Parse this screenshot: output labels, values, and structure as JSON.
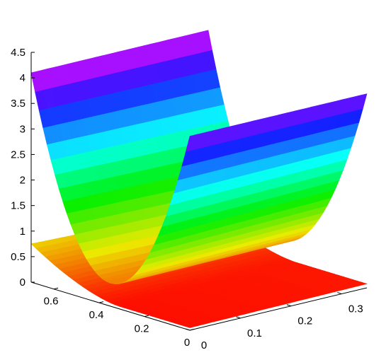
{
  "chart_data": {
    "type": "surface",
    "title": "",
    "xlabel": "",
    "ylabel": "",
    "zlabel": "",
    "grid": false,
    "colormap": "hsv",
    "colors": {
      "red": "#ff0000",
      "orange": "#ff9900",
      "yellow": "#ffe000",
      "green": "#44ff00",
      "cyan": "#00ffff",
      "blue": "#1f5fff",
      "magenta": "#ff00ff"
    },
    "x_axis": {
      "lim": [
        0,
        0.35
      ],
      "ticks": [
        0,
        0.1,
        0.2,
        0.3
      ],
      "tick_labels": [
        "0",
        "0.1",
        "0.2",
        "0.3"
      ]
    },
    "y_axis": {
      "lim": [
        0,
        0.7
      ],
      "ticks": [
        0,
        0.2,
        0.4,
        0.6
      ],
      "tick_labels": [
        "0",
        "0.2",
        "0.4",
        "0.6"
      ]
    },
    "z_axis": {
      "lim": [
        0,
        4.5
      ],
      "ticks": [
        0,
        0.5,
        1,
        1.5,
        2,
        2.5,
        3,
        3.5,
        4,
        4.5
      ],
      "tick_labels": [
        "0",
        "0.5",
        "1",
        "1.5",
        "2",
        "2.5",
        "3",
        "3.5",
        "4",
        "4.5"
      ]
    },
    "surfaces": [
      {
        "name": "",
        "shape": "valley",
        "x_range": [
          0,
          0.35
        ],
        "y_range": [
          0,
          0.7
        ],
        "min_z": 0.45,
        "min_at_y": 0.35,
        "edge_z_at_y0": 3.8,
        "edge_z_at_y_max": 4.1
      },
      {
        "name": "",
        "shape": "low sheet",
        "x_range": [
          0,
          0.35
        ],
        "y_range": [
          0,
          0.7
        ],
        "z_range": [
          0.05,
          0.8
        ]
      }
    ]
  }
}
